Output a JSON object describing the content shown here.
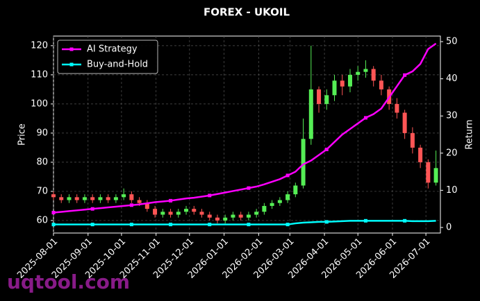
{
  "chart_data": {
    "type": "candlestick",
    "title": "FOREX - UKOIL",
    "y_label": "Price",
    "y2_label": "Return",
    "watermark": "uqtool.com",
    "x": [
      "2025-08-01",
      "2025-08-08",
      "2025-08-15",
      "2025-08-22",
      "2025-08-29",
      "2025-09-05",
      "2025-09-12",
      "2025-09-19",
      "2025-09-26",
      "2025-10-03",
      "2025-10-10",
      "2025-10-17",
      "2025-10-24",
      "2025-10-31",
      "2025-11-07",
      "2025-11-14",
      "2025-11-21",
      "2025-11-28",
      "2025-12-05",
      "2025-12-12",
      "2025-12-19",
      "2025-12-26",
      "2026-01-02",
      "2026-01-09",
      "2026-01-16",
      "2026-01-23",
      "2026-01-30",
      "2026-02-06",
      "2026-02-13",
      "2026-02-20",
      "2026-02-27",
      "2026-03-06",
      "2026-03-13",
      "2026-03-20",
      "2026-03-27",
      "2026-04-03",
      "2026-04-10",
      "2026-04-17",
      "2026-04-24",
      "2026-05-01",
      "2026-05-08",
      "2026-05-15",
      "2026-05-22",
      "2026-05-29",
      "2026-06-05",
      "2026-06-12",
      "2026-06-19",
      "2026-06-26",
      "2026-07-03",
      "2026-07-10"
    ],
    "open": [
      69,
      68,
      67,
      68,
      67,
      68,
      67,
      68,
      67,
      68,
      69,
      67,
      66,
      64,
      62,
      63,
      62,
      63,
      64,
      63,
      62,
      61,
      60,
      61,
      62,
      61,
      62,
      63,
      65,
      66,
      67,
      69,
      72,
      88,
      105,
      100,
      103,
      108,
      106,
      110,
      111,
      112,
      108,
      105,
      100,
      97,
      90,
      85,
      80,
      73
    ],
    "high": [
      70,
      69,
      69,
      69,
      69,
      69,
      69,
      69,
      69,
      71,
      70,
      68,
      67,
      65,
      64,
      64,
      64,
      65,
      65,
      64,
      63,
      62,
      62,
      63,
      63,
      63,
      64,
      66,
      67,
      68,
      70,
      73,
      95,
      120,
      106,
      105,
      110,
      110,
      112,
      113,
      115,
      113,
      110,
      106,
      102,
      98,
      92,
      86,
      81,
      84
    ],
    "low": [
      67,
      66,
      66,
      66,
      66,
      66,
      66,
      66,
      66,
      67,
      66,
      65,
      63,
      61,
      61,
      61,
      61,
      62,
      62,
      61,
      60,
      59,
      59,
      60,
      60,
      60,
      61,
      62,
      64,
      65,
      66,
      68,
      71,
      86,
      97,
      98,
      101,
      103,
      104,
      108,
      109,
      106,
      103,
      98,
      95,
      88,
      83,
      78,
      71,
      72
    ],
    "close": [
      68,
      67,
      68,
      67,
      68,
      67,
      68,
      67,
      68,
      69,
      67,
      66,
      64,
      62,
      63,
      62,
      63,
      64,
      63,
      62,
      61,
      60,
      61,
      62,
      61,
      62,
      63,
      65,
      66,
      67,
      69,
      72,
      88,
      105,
      100,
      103,
      108,
      106,
      110,
      111,
      112,
      108,
      105,
      100,
      97,
      90,
      85,
      80,
      73,
      78
    ],
    "up_color": "#55ee55",
    "down_color": "#ff5555",
    "series": [
      {
        "name": "AI Strategy",
        "color": "#ff00ff",
        "axis": "y2",
        "values": [
          4,
          4.2,
          4.4,
          4.6,
          4.8,
          5,
          5.2,
          5.4,
          5.6,
          5.8,
          6,
          6.2,
          6.5,
          6.8,
          7,
          7.2,
          7.5,
          7.8,
          8,
          8.3,
          8.6,
          9,
          9.4,
          9.8,
          10.2,
          10.6,
          11,
          11.6,
          12.3,
          13,
          14,
          15,
          17,
          18,
          19.5,
          21,
          23,
          25,
          26.5,
          28,
          29.5,
          30.5,
          32,
          35,
          38,
          41,
          42,
          44,
          48,
          49.5
        ]
      },
      {
        "name": "Buy-and-Hold",
        "color": "#00ffff",
        "axis": "y2",
        "values": [
          0.8,
          0.8,
          0.8,
          0.8,
          0.8,
          0.8,
          0.8,
          0.8,
          0.8,
          0.8,
          0.8,
          0.8,
          0.8,
          0.8,
          0.8,
          0.8,
          0.8,
          0.8,
          0.8,
          0.8,
          0.8,
          0.8,
          0.8,
          0.8,
          0.8,
          0.8,
          0.8,
          0.8,
          0.8,
          0.8,
          0.8,
          1.1,
          1.3,
          1.4,
          1.5,
          1.5,
          1.6,
          1.7,
          1.8,
          1.8,
          1.8,
          1.8,
          1.8,
          1.8,
          1.8,
          1.8,
          1.7,
          1.7,
          1.7,
          1.8
        ]
      }
    ],
    "xlim": [
      "2025-08-01",
      "2026-07-14"
    ],
    "xticks": [
      "2025-08-01",
      "2025-09-01",
      "2025-10-01",
      "2025-11-01",
      "2025-12-01",
      "2026-01-01",
      "2026-02-01",
      "2026-03-01",
      "2026-04-01",
      "2026-05-01",
      "2026-06-01",
      "2026-07-01"
    ],
    "ylim": [
      55.7,
      123.3
    ],
    "yticks": [
      60,
      70,
      80,
      90,
      100,
      110,
      120
    ],
    "y2lim": [
      -1.5,
      51.5
    ],
    "y2ticks": [
      0,
      10,
      20,
      30,
      40,
      50
    ],
    "grid": true,
    "legend": "upper left"
  }
}
